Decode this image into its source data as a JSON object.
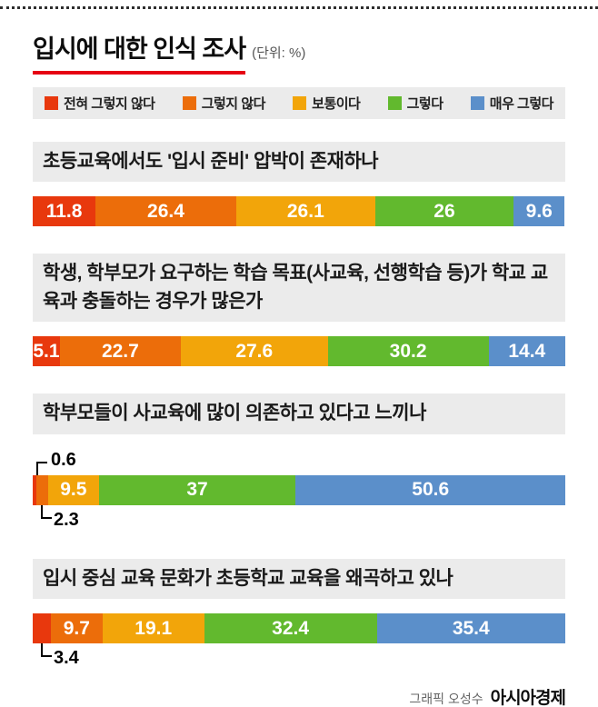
{
  "page": {
    "title": "입시에 대한 인식 조사",
    "unit": "(단위: %)",
    "credit_role": "그래픽 오성수",
    "credit_brand": "아시아경제"
  },
  "legend": {
    "items": [
      {
        "label": "전혀 그렇지 않다",
        "color": "#e8380d"
      },
      {
        "label": "그렇지 않다",
        "color": "#ec6d0a"
      },
      {
        "label": "보통이다",
        "color": "#f2a50a"
      },
      {
        "label": "그렇다",
        "color": "#62b92e"
      },
      {
        "label": "매우 그렇다",
        "color": "#5b8fca"
      }
    ]
  },
  "chart_data": [
    {
      "type": "bar",
      "stacked": true,
      "question": "초등교육에서도 '입시 준비' 압박이 존재하나",
      "categories": [
        "전혀 그렇지 않다",
        "그렇지 않다",
        "보통이다",
        "그렇다",
        "매우 그렇다"
      ],
      "values": [
        11.8,
        26.4,
        26.1,
        26,
        9.6
      ],
      "value_labels": [
        "11.8",
        "26.4",
        "26.1",
        "26",
        "9.6"
      ],
      "callouts": []
    },
    {
      "type": "bar",
      "stacked": true,
      "question": "학생, 학부모가 요구하는 학습 목표(사교육, 선행학습 등)가 학교 교육과 충돌하는 경우가 많은가",
      "categories": [
        "전혀 그렇지 않다",
        "그렇지 않다",
        "보통이다",
        "그렇다",
        "매우 그렇다"
      ],
      "values": [
        5.1,
        22.7,
        27.6,
        30.2,
        14.4
      ],
      "value_labels": [
        "5.1",
        "22.7",
        "27.6",
        "30.2",
        "14.4"
      ],
      "callouts": []
    },
    {
      "type": "bar",
      "stacked": true,
      "question": "학부모들이 사교육에 많이 의존하고 있다고 느끼나",
      "categories": [
        "전혀 그렇지 않다",
        "그렇지 않다",
        "보통이다",
        "그렇다",
        "매우 그렇다"
      ],
      "values": [
        0.6,
        2.3,
        9.5,
        37,
        50.6
      ],
      "value_labels": [
        "0.6",
        "2.3",
        "9.5",
        "37",
        "50.6"
      ],
      "callouts": [
        {
          "segment": 0,
          "label": "0.6",
          "position": "above"
        },
        {
          "segment": 1,
          "label": "2.3",
          "position": "below"
        }
      ]
    },
    {
      "type": "bar",
      "stacked": true,
      "question": "입시 중심 교육 문화가 초등학교 교육을 왜곡하고 있나",
      "categories": [
        "전혀 그렇지 않다",
        "그렇지 않다",
        "보통이다",
        "그렇다",
        "매우 그렇다"
      ],
      "values": [
        3.4,
        9.7,
        19.1,
        32.4,
        35.4
      ],
      "value_labels": [
        "3.4",
        "9.7",
        "19.1",
        "32.4",
        "35.4"
      ],
      "callouts": [
        {
          "segment": 0,
          "label": "3.4",
          "position": "below"
        }
      ]
    }
  ]
}
